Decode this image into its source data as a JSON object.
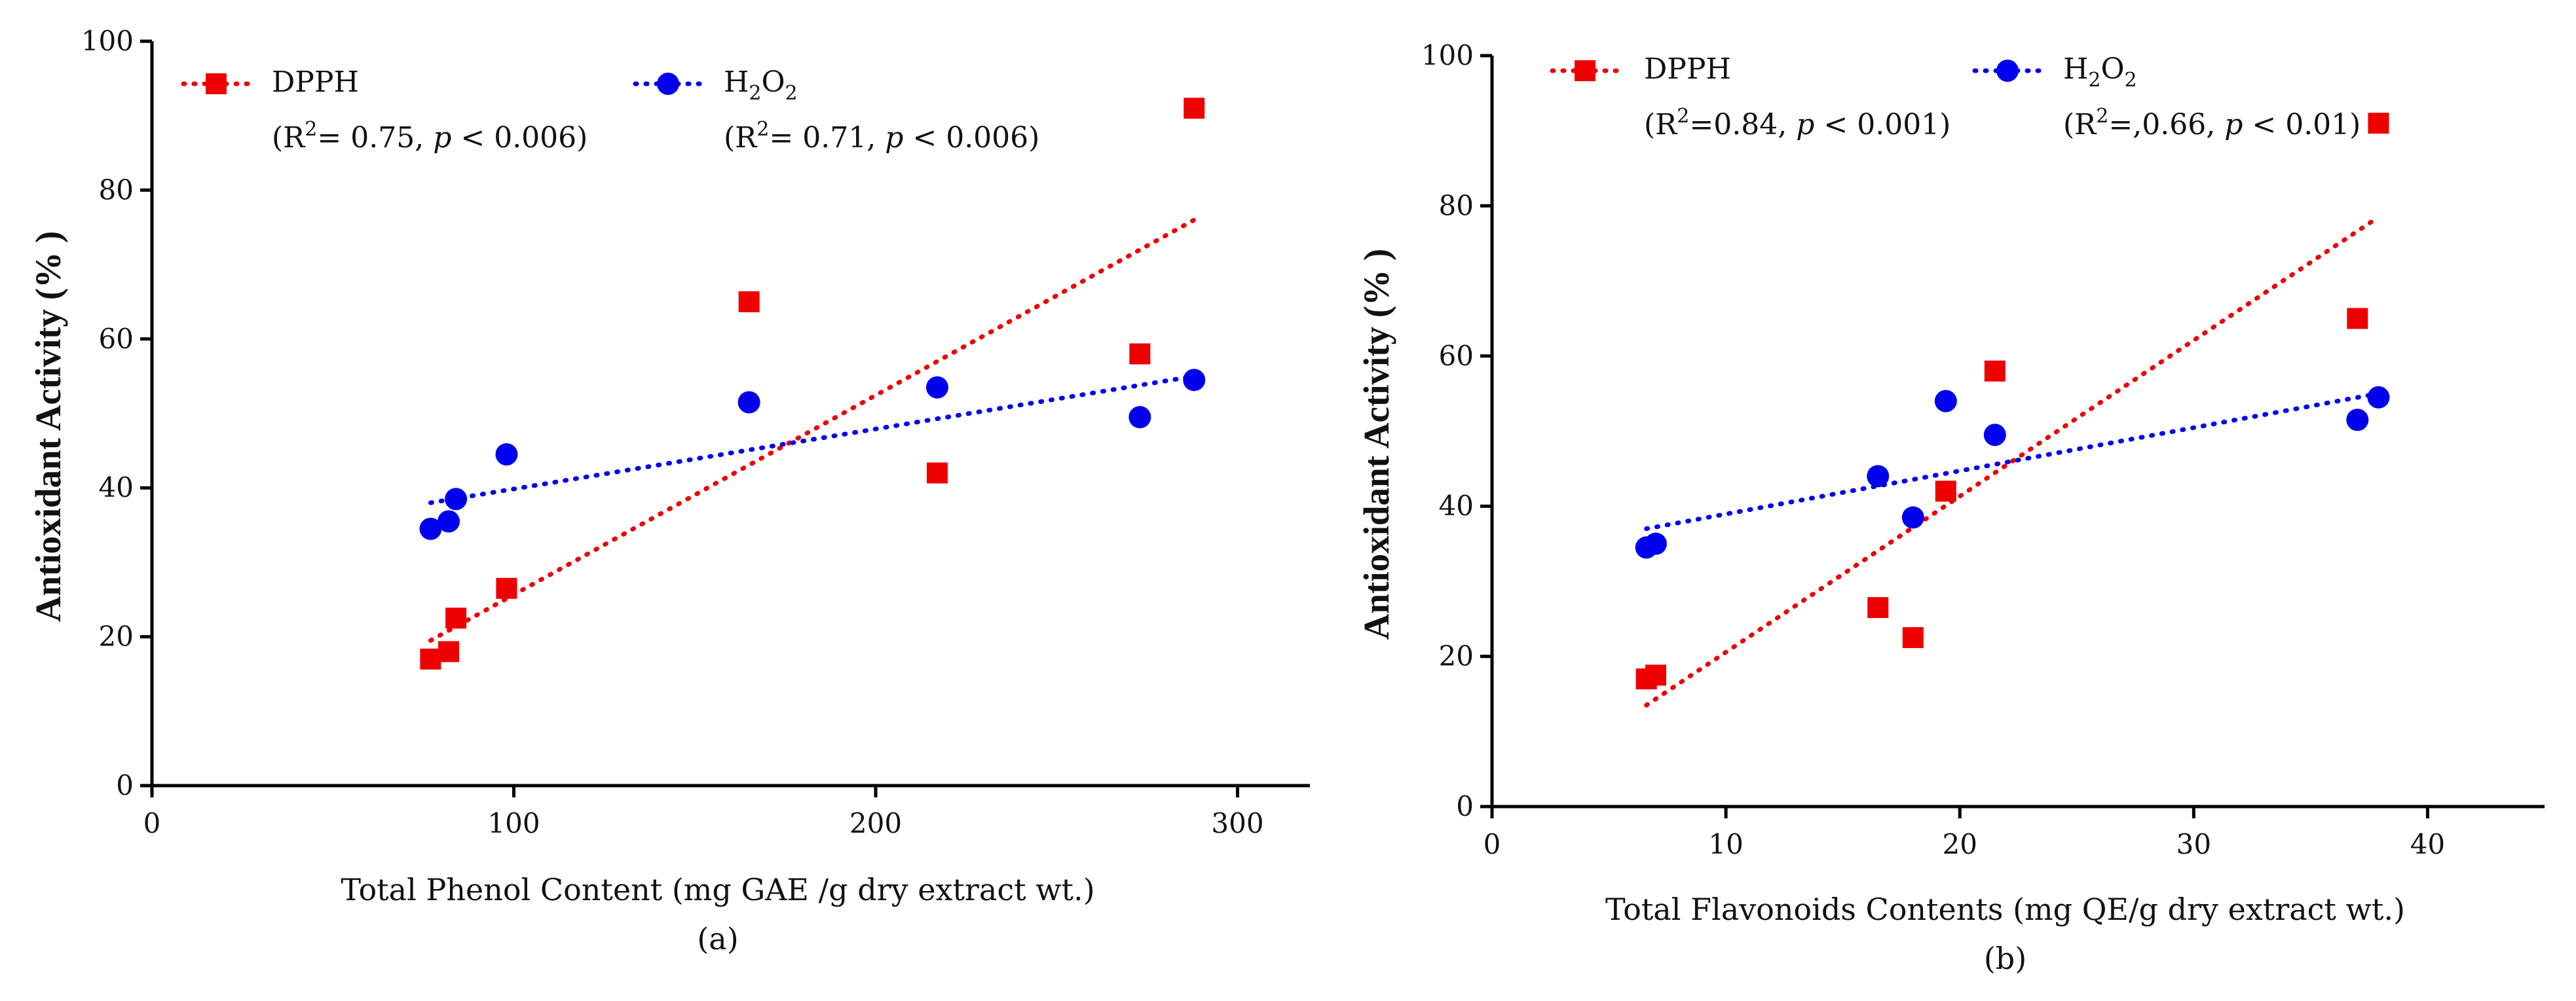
{
  "chart_data": [
    {
      "type": "scatter",
      "panel_label": "(a)",
      "xlabel": "Total Phenol Content (mg GAE /g dry extract wt.)",
      "ylabel": "Antioxidant Activity (% )",
      "xlim": [
        0,
        320
      ],
      "ylim": [
        0,
        100
      ],
      "xticks": [
        0,
        100,
        200,
        300
      ],
      "yticks": [
        0,
        20,
        40,
        60,
        80,
        100
      ],
      "grid": false,
      "legend_position": "top-left",
      "series": [
        {
          "name": "DPPH",
          "stat_r2": "(R",
          "stat_r2_rest": "= 0.75, ",
          "stat_p": "p",
          "stat_p_rest": " < 0.006)",
          "marker": "square",
          "color": "#ee0000",
          "points": [
            [
              77,
              17
            ],
            [
              82,
              18
            ],
            [
              84,
              22.5
            ],
            [
              98,
              26.5
            ],
            [
              165,
              65
            ],
            [
              217,
              42
            ],
            [
              273,
              58
            ],
            [
              288,
              91
            ]
          ],
          "trendline": [
            [
              77,
              19.5
            ],
            [
              288,
              76
            ]
          ]
        },
        {
          "name": "H2O2",
          "name_main": "H",
          "name_sub": "2",
          "name_tail": "O",
          "name_sub2": "2",
          "stat_r2": "(R",
          "stat_r2_rest": "= 0.71, ",
          "stat_p": "p",
          "stat_p_rest": " < 0.006)",
          "marker": "circle",
          "color": "#0000ee",
          "points": [
            [
              77,
              34.5
            ],
            [
              82,
              35.5
            ],
            [
              84,
              38.5
            ],
            [
              98,
              44.5
            ],
            [
              165,
              51.5
            ],
            [
              217,
              53.5
            ],
            [
              273,
              49.5
            ],
            [
              288,
              54.5
            ]
          ],
          "trendline": [
            [
              77,
              38
            ],
            [
              288,
              55
            ]
          ]
        }
      ]
    },
    {
      "type": "scatter",
      "panel_label": "(b)",
      "xlabel": "Total Flavonoids Contents (mg QE/g dry extract wt.)",
      "ylabel": "Antioxidant Activity (% )",
      "xlim": [
        0,
        45
      ],
      "ylim": [
        0,
        100
      ],
      "xticks": [
        0,
        10,
        20,
        30,
        40
      ],
      "yticks": [
        0,
        20,
        40,
        60,
        80,
        100
      ],
      "grid": false,
      "legend_position": "top-left",
      "series": [
        {
          "name": "DPPH",
          "stat_r2": "(R",
          "stat_r2_rest": "=0.84, ",
          "stat_p": "p",
          "stat_p_rest": " < 0.001)",
          "marker": "square",
          "color": "#ee0000",
          "points": [
            [
              6.6,
              17
            ],
            [
              7,
              17.5
            ],
            [
              16.5,
              26.5
            ],
            [
              18,
              22.5
            ],
            [
              19.4,
              42
            ],
            [
              21.5,
              58
            ],
            [
              37,
              65
            ],
            [
              37.9,
              91
            ]
          ],
          "trendline": [
            [
              6.6,
              13.5
            ],
            [
              37.9,
              78.5
            ]
          ]
        },
        {
          "name": "H2O2",
          "name_main": "H",
          "name_sub": "2",
          "name_tail": "O",
          "name_sub2": "2",
          "stat_r2": "(R",
          "stat_r2_rest": "=,0.66, ",
          "stat_p": "p",
          "stat_p_rest": " < 0.01)",
          "marker": "circle",
          "color": "#0000ee",
          "points": [
            [
              6.6,
              34.5
            ],
            [
              7,
              35
            ],
            [
              16.5,
              44
            ],
            [
              18,
              38.5
            ],
            [
              19.4,
              54
            ],
            [
              21.5,
              49.5
            ],
            [
              37,
              51.5
            ],
            [
              37.9,
              54.5
            ]
          ],
          "trendline": [
            [
              6.6,
              37
            ],
            [
              37.9,
              55
            ]
          ]
        }
      ]
    }
  ],
  "legend_sup": "2"
}
